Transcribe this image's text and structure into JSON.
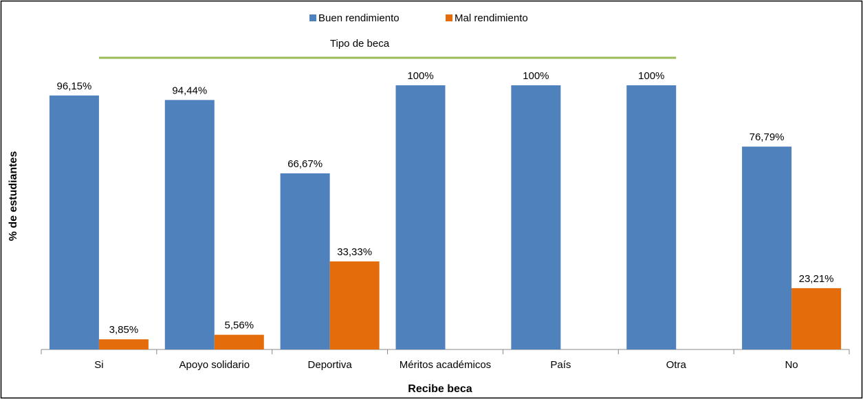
{
  "chart_data": {
    "type": "bar",
    "categories": [
      "Si",
      "Apoyo solidario",
      "Deportiva",
      "Méritos académicos",
      "País",
      "Otra",
      "No"
    ],
    "series": [
      {
        "name": "Buen rendimiento",
        "color": "#4f81bd",
        "values": [
          96.15,
          94.44,
          66.67,
          100,
          100,
          100,
          76.79
        ],
        "value_labels": [
          "96,15%",
          "94,44%",
          "66,67%",
          "100%",
          "100%",
          "100%",
          "76,79%"
        ]
      },
      {
        "name": "Mal rendimiento",
        "color": "#e46c0a",
        "values": [
          3.85,
          5.56,
          33.33,
          null,
          null,
          null,
          23.21
        ],
        "value_labels": [
          "3,85%",
          "5,56%",
          "33,33%",
          null,
          null,
          null,
          "23,21%"
        ]
      }
    ],
    "annotation": "Tipo de beca",
    "annotation_color": "#9bbb59",
    "x_label": "Recibe beca",
    "y_label": "% de estudiantes",
    "ylim": [
      0,
      100
    ],
    "legend": "top"
  }
}
